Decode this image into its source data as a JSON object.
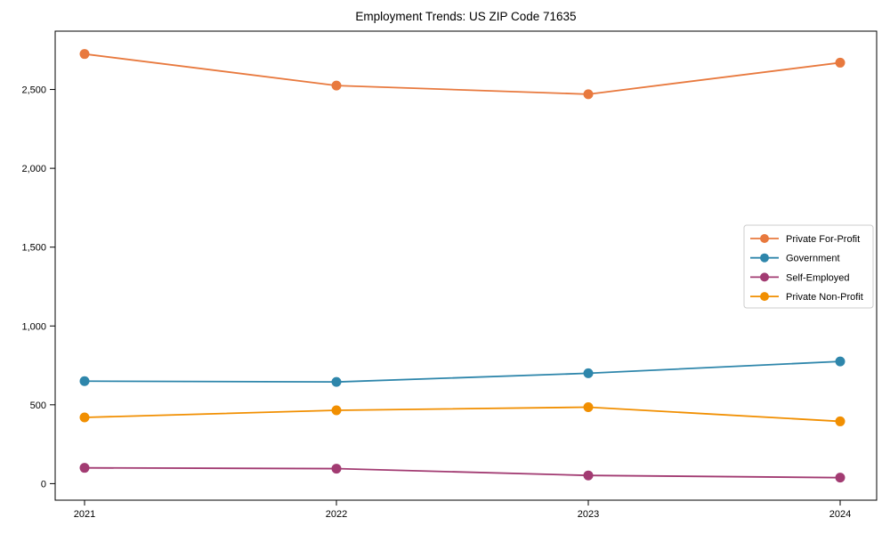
{
  "chart_data": {
    "type": "line",
    "title": "Employment Trends: US ZIP Code 71635",
    "xlabel": "",
    "ylabel": "",
    "x": [
      "2021",
      "2022",
      "2023",
      "2024"
    ],
    "series": [
      {
        "name": "Private For-Profit",
        "color": "#E8793E",
        "values": [
          2725,
          2525,
          2470,
          2670
        ]
      },
      {
        "name": "Government",
        "color": "#2E86AB",
        "values": [
          650,
          645,
          700,
          775
        ]
      },
      {
        "name": "Self-Employed",
        "color": "#A23B72",
        "values": [
          100,
          95,
          52,
          38
        ]
      },
      {
        "name": "Private Non-Profit",
        "color": "#F18F01",
        "values": [
          420,
          465,
          485,
          395
        ]
      }
    ],
    "yticks": [
      0,
      500,
      1000,
      1500,
      2000,
      2500
    ],
    "ytick_labels": [
      "0",
      "500",
      "1,000",
      "1,500",
      "2,000",
      "2,500"
    ],
    "ylim": [
      -105,
      2870
    ],
    "grid": false,
    "legend_position": "center-right",
    "marker": "circle",
    "plot_border": true,
    "background_color": "#ffffff",
    "text_color": "#000000"
  }
}
